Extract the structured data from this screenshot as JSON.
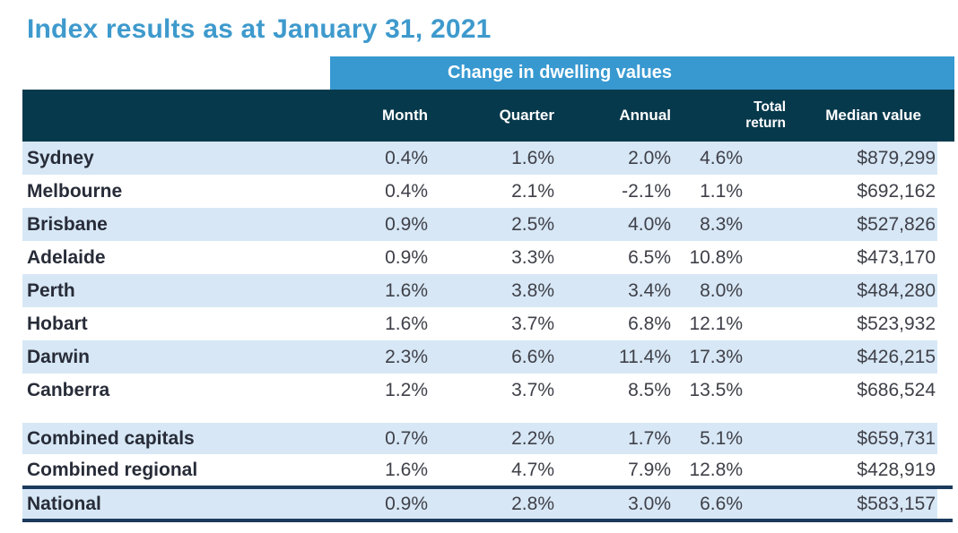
{
  "title": "Index results as at January 31, 2021",
  "banner": {
    "label": "Change in dwelling values"
  },
  "table": {
    "header": {
      "month": "Month",
      "quarter": "Quarter",
      "annual": "Annual",
      "total_return_line1": "Total",
      "total_return_line2": "return",
      "median_value": "Median value"
    },
    "rows": [
      {
        "name": "Sydney",
        "month": "0.4%",
        "quarter": "1.6%",
        "annual": "2.0%",
        "total_return": "4.6%",
        "median_value": "$879,299"
      },
      {
        "name": "Melbourne",
        "month": "0.4%",
        "quarter": "2.1%",
        "annual": "-2.1%",
        "total_return": "1.1%",
        "median_value": "$692,162"
      },
      {
        "name": "Brisbane",
        "month": "0.9%",
        "quarter": "2.5%",
        "annual": "4.0%",
        "total_return": "8.3%",
        "median_value": "$527,826"
      },
      {
        "name": "Adelaide",
        "month": "0.9%",
        "quarter": "3.3%",
        "annual": "6.5%",
        "total_return": "10.8%",
        "median_value": "$473,170"
      },
      {
        "name": "Perth",
        "month": "1.6%",
        "quarter": "3.8%",
        "annual": "3.4%",
        "total_return": "8.0%",
        "median_value": "$484,280"
      },
      {
        "name": "Hobart",
        "month": "1.6%",
        "quarter": "3.7%",
        "annual": "6.8%",
        "total_return": "12.1%",
        "median_value": "$523,932"
      },
      {
        "name": "Darwin",
        "month": "2.3%",
        "quarter": "6.6%",
        "annual": "11.4%",
        "total_return": "17.3%",
        "median_value": "$426,215"
      },
      {
        "name": "Canberra",
        "month": "1.2%",
        "quarter": "3.7%",
        "annual": "8.5%",
        "total_return": "13.5%",
        "median_value": "$686,524"
      },
      {
        "name": "Combined capitals",
        "month": "0.7%",
        "quarter": "2.2%",
        "annual": "1.7%",
        "total_return": "5.1%",
        "median_value": "$659,731"
      },
      {
        "name": "Combined regional",
        "month": "1.6%",
        "quarter": "4.7%",
        "annual": "7.9%",
        "total_return": "12.8%",
        "median_value": "$428,919"
      },
      {
        "name": "National",
        "month": "0.9%",
        "quarter": "2.8%",
        "annual": "3.0%",
        "total_return": "6.6%",
        "median_value": "$583,157"
      }
    ]
  },
  "colors": {
    "title_blue": "#3E9ACD",
    "banner_blue": "#3899D1",
    "header_dark": "#07394C",
    "row_shaded": "#D7E7F5",
    "national_border": "#1B3A5C",
    "name_text": "#272C38",
    "value_text": "#3F4049"
  },
  "chart_data": {
    "type": "table",
    "title": "Index results as at January 31, 2021",
    "group_header": "Change in dwelling values",
    "columns": [
      "",
      "Month",
      "Quarter",
      "Annual",
      "Total return",
      "Median value"
    ],
    "rows": [
      [
        "Sydney",
        "0.4%",
        "1.6%",
        "2.0%",
        "4.6%",
        "$879,299"
      ],
      [
        "Melbourne",
        "0.4%",
        "2.1%",
        "-2.1%",
        "1.1%",
        "$692,162"
      ],
      [
        "Brisbane",
        "0.9%",
        "2.5%",
        "4.0%",
        "8.3%",
        "$527,826"
      ],
      [
        "Adelaide",
        "0.9%",
        "3.3%",
        "6.5%",
        "10.8%",
        "$473,170"
      ],
      [
        "Perth",
        "1.6%",
        "3.8%",
        "3.4%",
        "8.0%",
        "$484,280"
      ],
      [
        "Hobart",
        "1.6%",
        "3.7%",
        "6.8%",
        "12.1%",
        "$523,932"
      ],
      [
        "Darwin",
        "2.3%",
        "6.6%",
        "11.4%",
        "17.3%",
        "$426,215"
      ],
      [
        "Canberra",
        "1.2%",
        "3.7%",
        "8.5%",
        "13.5%",
        "$686,524"
      ],
      [
        "Combined capitals",
        "0.7%",
        "2.2%",
        "1.7%",
        "5.1%",
        "$659,731"
      ],
      [
        "Combined regional",
        "1.6%",
        "4.7%",
        "7.9%",
        "12.8%",
        "$428,919"
      ],
      [
        "National",
        "0.9%",
        "2.8%",
        "3.0%",
        "6.6%",
        "$583,157"
      ]
    ]
  }
}
